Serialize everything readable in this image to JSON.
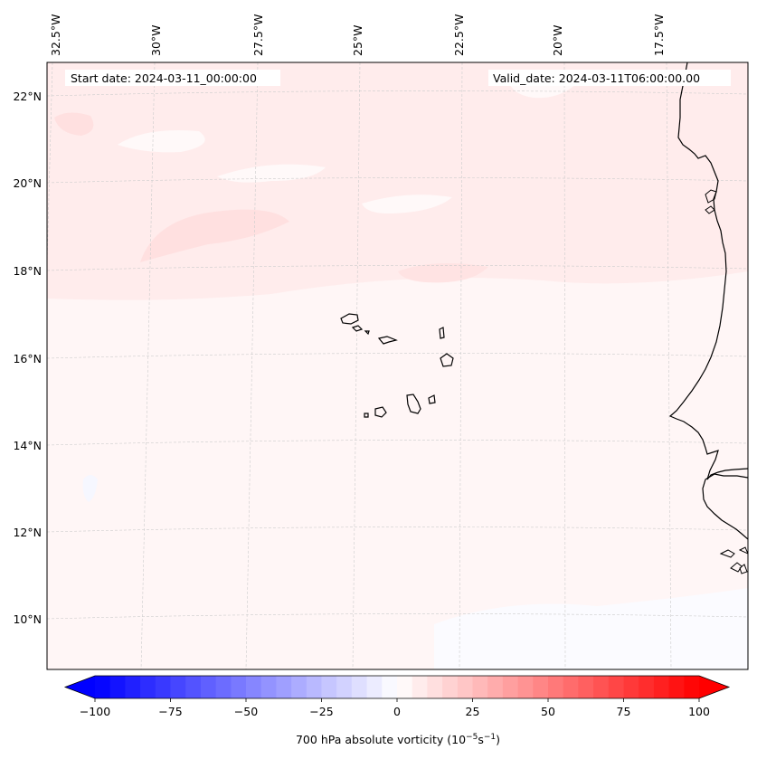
{
  "header": {
    "start_date": "Start date: 2024-03-11_00:00:00",
    "valid_date": "Valid_date: 2024-03-11T06:00:00.00"
  },
  "lon_labels": [
    "32.5°W",
    "30°W",
    "27.5°W",
    "25°W",
    "22.5°W",
    "20°W",
    "17.5°W"
  ],
  "lat_labels": [
    "22°N",
    "20°N",
    "18°N",
    "16°N",
    "14°N",
    "12°N",
    "10°N"
  ],
  "colorbar": {
    "label_prefix": "700 hPa absolute vorticity (10",
    "label_exp1": "−5",
    "label_mid": "s",
    "label_exp2": "−1",
    "label_suffix": ")",
    "tick_labels": [
      "−100",
      "−75",
      "−50",
      "−25",
      "0",
      "25",
      "50",
      "75",
      "100"
    ],
    "min": -100,
    "max": 100,
    "step": 5,
    "extend": "both",
    "cmap": "bwr"
  },
  "colors": {
    "coast": "#000000",
    "grid": "#cccccc",
    "background_weak_positive": "#fff6f6",
    "band_positive": "#ffe9e9",
    "patch_near_zero": "#fdfdff"
  }
}
